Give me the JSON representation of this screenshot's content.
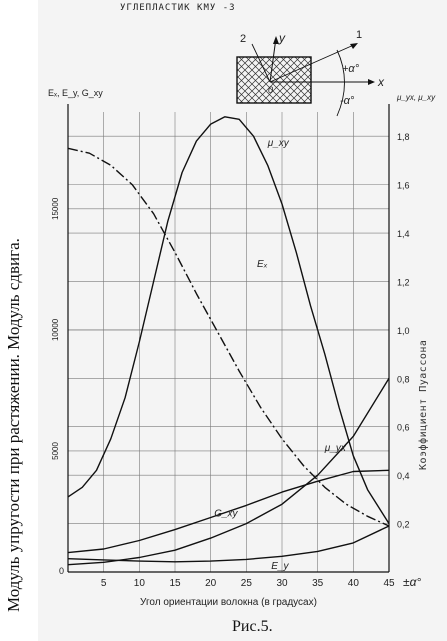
{
  "figure": {
    "side_title": "Модуль упругости при растяжении.  Модуль сдвига.",
    "caption": "Рис.5."
  },
  "inset": {
    "y_label": "y",
    "x_label": "x",
    "label_1": "1",
    "label_2": "2",
    "origin_label": "0",
    "plus_alpha": "+α°",
    "minus_alpha": "-α°"
  },
  "chart_data": {
    "type": "line",
    "title": "УГЛЕПЛАСТИК КМУ -3",
    "xlabel": "Угол ориентации волокна (в градусах)",
    "xlabel_right": "±α°",
    "ylabel": "Eₓ, E_y, G_xy",
    "y2label": "Коэффициент Пуассона",
    "y2label_top": "μ_yx, μ_xy",
    "xlim": [
      0,
      45
    ],
    "ylim": [
      0,
      19000
    ],
    "y2lim": [
      0,
      1.9
    ],
    "xticks": [
      5,
      10,
      15,
      20,
      25,
      30,
      35,
      40,
      45
    ],
    "xtick_labels": [
      "5",
      "10",
      "15",
      "20",
      "25",
      "30",
      "35",
      "40",
      "45"
    ],
    "x_origin_label": "0",
    "yticks": [
      5000,
      10000,
      15000
    ],
    "ytick_labels": [
      "5000",
      "10000",
      "15000"
    ],
    "y2ticks": [
      0.2,
      0.4,
      0.6,
      0.8,
      1.0,
      1.2,
      1.4,
      1.6,
      1.8
    ],
    "y2tick_labels": [
      "0,2",
      "0,4",
      "0,6",
      "0,8",
      "1,0",
      "1,2",
      "1,4",
      "1,6",
      "1,8"
    ],
    "grid": true,
    "series": [
      {
        "name": "Eₓ",
        "axis": "left",
        "style": "dashed",
        "x": [
          0,
          3,
          6,
          9,
          12,
          15,
          18,
          21,
          24,
          27,
          30,
          33,
          36,
          39,
          42,
          45
        ],
        "values": [
          17500,
          17300,
          16800,
          16000,
          14800,
          13200,
          11500,
          9900,
          8300,
          6800,
          5500,
          4400,
          3500,
          2800,
          2300,
          1900
        ]
      },
      {
        "name": "E_y",
        "axis": "left",
        "style": "solid",
        "x": [
          0,
          5,
          10,
          15,
          20,
          25,
          30,
          35,
          40,
          45
        ],
        "values": [
          550,
          500,
          450,
          420,
          450,
          520,
          650,
          850,
          1200,
          1900
        ]
      },
      {
        "name": "G_xy",
        "axis": "left",
        "style": "solid",
        "x": [
          0,
          5,
          10,
          15,
          20,
          25,
          30,
          35,
          40,
          45
        ],
        "values": [
          800,
          950,
          1300,
          1750,
          2250,
          2750,
          3300,
          3750,
          4150,
          4200
        ]
      },
      {
        "name": "μ_yx",
        "axis": "right",
        "style": "solid",
        "x": [
          0,
          5,
          10,
          15,
          20,
          25,
          30,
          35,
          40,
          45
        ],
        "values": [
          0.03,
          0.04,
          0.06,
          0.09,
          0.14,
          0.2,
          0.28,
          0.4,
          0.56,
          0.8
        ]
      },
      {
        "name": "μ_xy",
        "axis": "right",
        "style": "solid",
        "x": [
          0,
          2,
          4,
          6,
          8,
          10,
          12,
          14,
          16,
          18,
          20,
          22,
          24,
          26,
          28,
          30,
          32,
          34,
          36,
          38,
          40,
          42,
          45
        ],
        "values": [
          0.31,
          0.35,
          0.42,
          0.55,
          0.72,
          0.95,
          1.2,
          1.45,
          1.65,
          1.78,
          1.85,
          1.88,
          1.87,
          1.8,
          1.68,
          1.52,
          1.32,
          1.1,
          0.9,
          0.68,
          0.48,
          0.34,
          0.2
        ]
      }
    ],
    "series_labels": [
      "Eₓ",
      "E_y",
      "G_xy",
      "μ_yx",
      "μ_xy"
    ]
  }
}
